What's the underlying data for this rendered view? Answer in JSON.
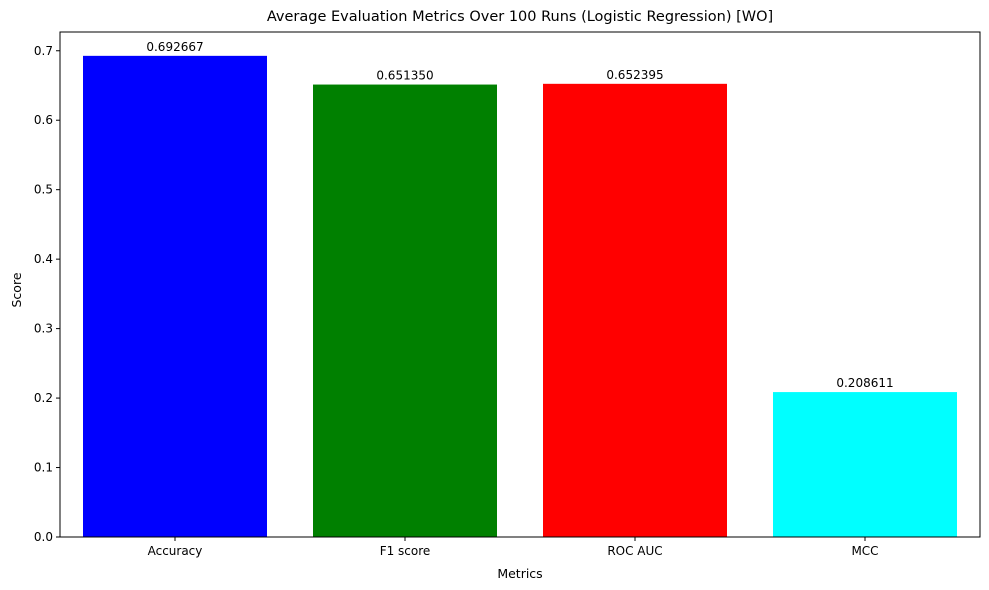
{
  "chart_data": {
    "type": "bar",
    "title": "Average Evaluation Metrics Over 100 Runs (Logistic Regression) [WO]",
    "xlabel": "Metrics",
    "ylabel": "Score",
    "categories": [
      "Accuracy",
      "F1 score",
      "ROC AUC",
      "MCC"
    ],
    "values": [
      0.692667,
      0.65135,
      0.652395,
      0.208611
    ],
    "data_labels": [
      "0.692667",
      "0.651350",
      "0.652395",
      "0.208611"
    ],
    "colors": [
      "#0000ff",
      "#008000",
      "#ff0000",
      "#00ffff"
    ],
    "ylim": [
      0,
      0.727
    ],
    "yticks": [
      0.0,
      0.1,
      0.2,
      0.3,
      0.4,
      0.5,
      0.6,
      0.7
    ],
    "ytick_labels": [
      "0.0",
      "0.1",
      "0.2",
      "0.3",
      "0.4",
      "0.5",
      "0.6",
      "0.7"
    ],
    "grid": false,
    "legend": false
  }
}
